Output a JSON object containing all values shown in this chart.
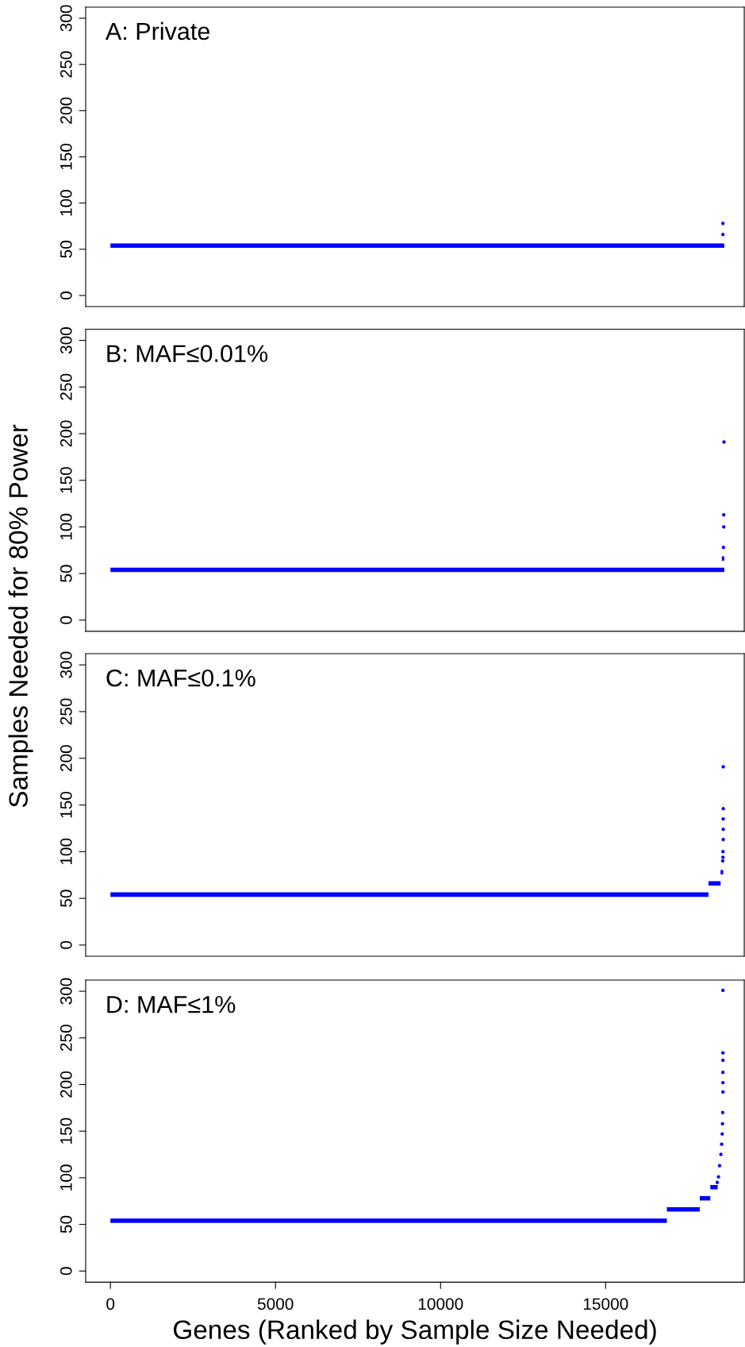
{
  "chart_data": [
    {
      "type": "line",
      "title": "A: Private",
      "xlim": [
        -750,
        19200
      ],
      "ylim": [
        -12,
        312
      ],
      "yticks": [
        0,
        50,
        100,
        150,
        200,
        250,
        300
      ],
      "tick_labels": "y",
      "series": [
        {
          "marker": "none",
          "color": "#0000ff",
          "x": [
            0,
            18595
          ],
          "values": [
            54,
            54
          ]
        },
        {
          "type": "scatter",
          "marker": "circle",
          "color": "#0000ff",
          "x": [
            18554,
            18554
          ],
          "values": [
            66,
            78
          ]
        }
      ]
    },
    {
      "type": "line",
      "title": "B: MAF≤0.01%",
      "ylabel": "Samples Needed for 80% Power",
      "xlim": [
        -750,
        19200
      ],
      "ylim": [
        -12,
        312
      ],
      "yticks": [
        0,
        50,
        100,
        150,
        200,
        250,
        300
      ],
      "tick_labels": "y",
      "series": [
        {
          "marker": "none",
          "color": "#0000ff",
          "x": [
            0,
            18595
          ],
          "values": [
            54,
            54
          ]
        },
        {
          "marker": "none",
          "color": "#0000ff",
          "x": [
            18520,
            18595
          ],
          "values": [
            66,
            66
          ]
        },
        {
          "type": "scatter",
          "marker": "circle",
          "color": "#0000ff",
          "x": [
            18570,
            18578,
            18578,
            18586
          ],
          "values": [
            78,
            100,
            113,
            191
          ]
        }
      ]
    },
    {
      "type": "line",
      "title": "C: MAF≤0.1%",
      "xlim": [
        -750,
        19200
      ],
      "ylim": [
        -12,
        312
      ],
      "yticks": [
        0,
        50,
        100,
        150,
        200,
        250,
        300
      ],
      "tick_labels": "y",
      "series": [
        {
          "marker": "none",
          "color": "#0000ff",
          "x": [
            0,
            18117
          ],
          "values": [
            54,
            54
          ]
        },
        {
          "marker": "none",
          "color": "#0000ff",
          "x": [
            18117,
            18483
          ],
          "values": [
            66,
            66
          ]
        },
        {
          "marker": "none",
          "color": "#0000ff",
          "x": [
            18483,
            18563
          ],
          "values": [
            78,
            78
          ]
        },
        {
          "type": "scatter",
          "marker": "circle",
          "color": "#0000ff",
          "x": [
            18547,
            18555,
            18555,
            18563,
            18563,
            18563,
            18563,
            18563
          ],
          "values": [
            90,
            94,
            100,
            113,
            124,
            135,
            146,
            191
          ]
        }
      ]
    },
    {
      "type": "line",
      "title": "D: MAF≤1%",
      "xlabel": "Genes (Ranked by Sample Size Needed)",
      "xlim": [
        -750,
        19200
      ],
      "ylim": [
        -12,
        312
      ],
      "yticks": [
        0,
        50,
        100,
        150,
        200,
        250,
        300
      ],
      "xticks": [
        0,
        5000,
        10000,
        15000
      ],
      "series": [
        {
          "marker": "none",
          "color": "#0000ff",
          "x": [
            0,
            16856
          ],
          "values": [
            54,
            54
          ]
        },
        {
          "marker": "none",
          "color": "#0000ff",
          "x": [
            16856,
            17854
          ],
          "values": [
            66,
            66
          ]
        },
        {
          "marker": "none",
          "color": "#0000ff",
          "x": [
            17854,
            18172
          ],
          "values": [
            78,
            78
          ]
        },
        {
          "marker": "none",
          "color": "#0000ff",
          "x": [
            18172,
            18395
          ],
          "values": [
            90,
            90
          ]
        },
        {
          "type": "scatter",
          "marker": "circle",
          "color": "#0000ff",
          "x": [
            18382,
            18420,
            18453,
            18492,
            18516,
            18532,
            18540,
            18547,
            18554,
            18554,
            18554,
            18554,
            18554,
            18554
          ],
          "values": [
            95,
            101,
            113,
            125,
            136,
            147,
            158,
            170,
            192,
            202,
            213,
            226,
            234,
            301
          ]
        }
      ]
    }
  ]
}
